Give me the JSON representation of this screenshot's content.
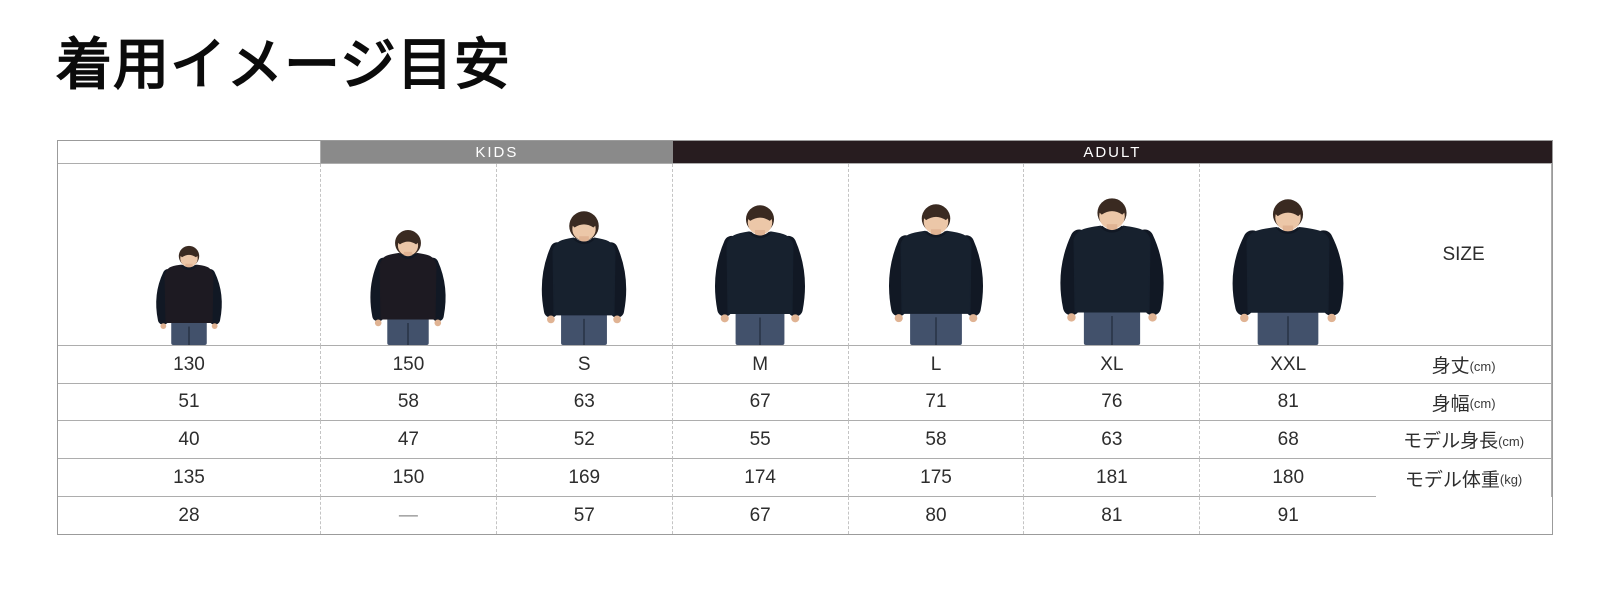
{
  "page": {
    "title": "着用イメージ目安"
  },
  "table": {
    "groups": [
      {
        "label": "KIDS",
        "color": "#8a8a8a",
        "columns": [
          "130",
          "150"
        ]
      },
      {
        "label": "ADULT",
        "color": "#271c1f",
        "columns": [
          "S",
          "M",
          "L",
          "XL",
          "XXL"
        ]
      }
    ],
    "rows": [
      {
        "label": "SIZE",
        "unit": "",
        "values": [
          "130",
          "150",
          "S",
          "M",
          "L",
          "XL",
          "XXL"
        ]
      },
      {
        "label": "身丈",
        "unit": "(cm)",
        "values": [
          "51",
          "58",
          "63",
          "67",
          "71",
          "76",
          "81"
        ]
      },
      {
        "label": "身幅",
        "unit": "(cm)",
        "values": [
          "40",
          "47",
          "52",
          "55",
          "58",
          "63",
          "68"
        ]
      },
      {
        "label": "モデル身長",
        "unit": "(cm)",
        "values": [
          "135",
          "150",
          "169",
          "174",
          "175",
          "181",
          "180"
        ]
      },
      {
        "label": "モデル体重",
        "unit": "(kg)",
        "values": [
          "28",
          "—",
          "57",
          "67",
          "80",
          "81",
          "91"
        ]
      }
    ],
    "photo_models": [
      "kid-model-130",
      "kid-model-150",
      "adult-model-s",
      "adult-model-m",
      "adult-model-l",
      "adult-model-xl",
      "adult-model-xxl"
    ]
  },
  "colors": {
    "kids_band": "#8a8a8a",
    "adult_band": "#271c1f",
    "sweatshirt_navy": "#17212e",
    "sweatshirt_kid": "#1d1a22",
    "arm_shade": "#111824",
    "jeans_denim": "#42516b",
    "jeans_seam": "#2e3a4e",
    "skin": "#ecc7a8",
    "skin_shade": "#e0b393",
    "hair": "#3a2a21"
  }
}
